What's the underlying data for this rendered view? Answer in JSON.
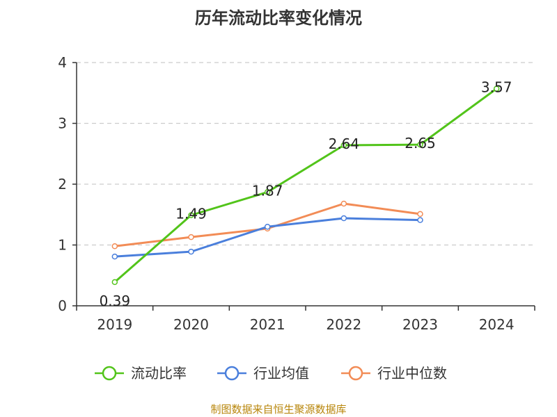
{
  "chart_data": {
    "type": "line",
    "title": "历年流动比率变化情况",
    "categories": [
      "2019",
      "2020",
      "2021",
      "2022",
      "2023",
      "2024"
    ],
    "ylim": [
      0,
      4
    ],
    "yticks": [
      0,
      1,
      2,
      3,
      4
    ],
    "grid": true,
    "legend_position": "bottom",
    "series": [
      {
        "name": "流动比率",
        "color": "#52c41a",
        "values": [
          0.39,
          1.49,
          1.87,
          2.64,
          2.65,
          3.57
        ],
        "labels": [
          "0.39",
          "1.49",
          "1.87",
          "2.64",
          "2.65",
          "3.57"
        ]
      },
      {
        "name": "行业均值",
        "color": "#4a7fdc",
        "values": [
          0.81,
          0.89,
          1.3,
          1.44,
          1.41,
          null
        ]
      },
      {
        "name": "行业中位数",
        "color": "#f28c56",
        "values": [
          0.98,
          1.13,
          1.27,
          1.68,
          1.51,
          null
        ]
      }
    ]
  },
  "footer": {
    "source": "制图数据来自恒生聚源数据库"
  }
}
